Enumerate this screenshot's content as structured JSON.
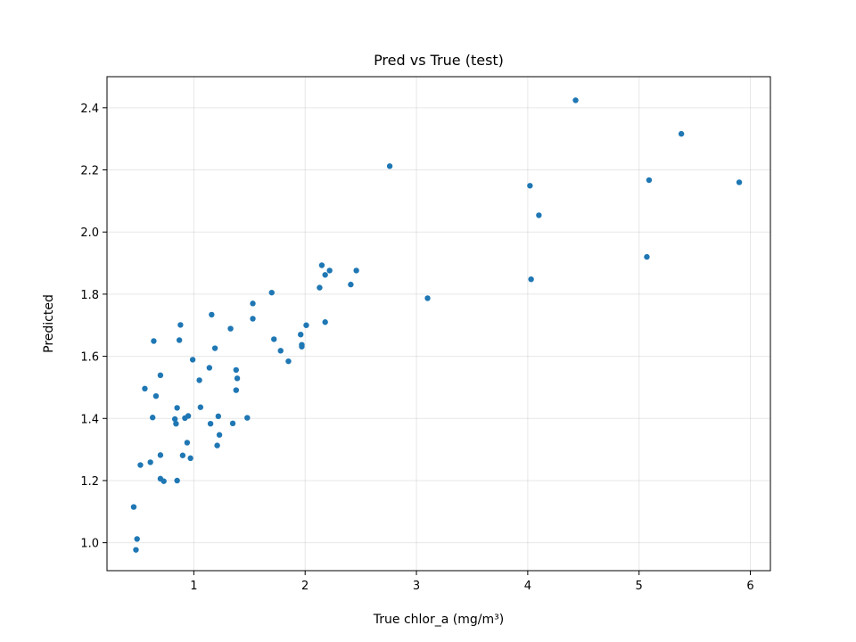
{
  "chart_data": {
    "type": "scatter",
    "title": "Pred vs True (test)",
    "xlabel": "True chlor_a (mg/m³)",
    "ylabel": "Predicted",
    "xlim": [
      0.22,
      6.18
    ],
    "ylim": [
      0.91,
      2.5
    ],
    "xticks": [
      1,
      2,
      3,
      4,
      5,
      6
    ],
    "yticks": [
      1.0,
      1.2,
      1.4,
      1.6,
      1.8,
      2.0,
      2.2,
      2.4
    ],
    "xtick_labels": [
      "1",
      "2",
      "3",
      "4",
      "5",
      "6"
    ],
    "ytick_labels": [
      "1.0",
      "1.2",
      "1.4",
      "1.6",
      "1.8",
      "2.0",
      "2.2",
      "2.4"
    ],
    "grid": true,
    "marker_color": "#1f77b4",
    "points": [
      {
        "x": 0.46,
        "y": 1.115
      },
      {
        "x": 0.49,
        "y": 1.012
      },
      {
        "x": 0.48,
        "y": 0.977
      },
      {
        "x": 0.52,
        "y": 1.25
      },
      {
        "x": 0.56,
        "y": 1.496
      },
      {
        "x": 0.61,
        "y": 1.259
      },
      {
        "x": 0.63,
        "y": 1.403
      },
      {
        "x": 0.64,
        "y": 1.649
      },
      {
        "x": 0.66,
        "y": 1.472
      },
      {
        "x": 0.7,
        "y": 1.539
      },
      {
        "x": 0.7,
        "y": 1.282
      },
      {
        "x": 0.7,
        "y": 1.206
      },
      {
        "x": 0.73,
        "y": 1.198
      },
      {
        "x": 0.83,
        "y": 1.398
      },
      {
        "x": 0.84,
        "y": 1.383
      },
      {
        "x": 0.85,
        "y": 1.434
      },
      {
        "x": 0.85,
        "y": 1.2
      },
      {
        "x": 0.87,
        "y": 1.652
      },
      {
        "x": 0.88,
        "y": 1.701
      },
      {
        "x": 0.9,
        "y": 1.281
      },
      {
        "x": 0.92,
        "y": 1.401
      },
      {
        "x": 0.94,
        "y": 1.322
      },
      {
        "x": 0.95,
        "y": 1.408
      },
      {
        "x": 0.97,
        "y": 1.272
      },
      {
        "x": 0.99,
        "y": 1.589
      },
      {
        "x": 1.05,
        "y": 1.523
      },
      {
        "x": 1.06,
        "y": 1.436
      },
      {
        "x": 1.14,
        "y": 1.563
      },
      {
        "x": 1.15,
        "y": 1.383
      },
      {
        "x": 1.16,
        "y": 1.734
      },
      {
        "x": 1.19,
        "y": 1.626
      },
      {
        "x": 1.21,
        "y": 1.313
      },
      {
        "x": 1.22,
        "y": 1.407
      },
      {
        "x": 1.23,
        "y": 1.347
      },
      {
        "x": 1.33,
        "y": 1.689
      },
      {
        "x": 1.35,
        "y": 1.384
      },
      {
        "x": 1.38,
        "y": 1.556
      },
      {
        "x": 1.39,
        "y": 1.529
      },
      {
        "x": 1.38,
        "y": 1.491
      },
      {
        "x": 1.48,
        "y": 1.402
      },
      {
        "x": 1.53,
        "y": 1.77
      },
      {
        "x": 1.53,
        "y": 1.721
      },
      {
        "x": 1.7,
        "y": 1.805
      },
      {
        "x": 1.72,
        "y": 1.655
      },
      {
        "x": 1.78,
        "y": 1.618
      },
      {
        "x": 1.85,
        "y": 1.584
      },
      {
        "x": 1.96,
        "y": 1.67
      },
      {
        "x": 1.97,
        "y": 1.637
      },
      {
        "x": 1.97,
        "y": 1.631
      },
      {
        "x": 2.01,
        "y": 1.7
      },
      {
        "x": 2.13,
        "y": 1.821
      },
      {
        "x": 2.15,
        "y": 1.893
      },
      {
        "x": 2.18,
        "y": 1.862
      },
      {
        "x": 2.18,
        "y": 1.71
      },
      {
        "x": 2.22,
        "y": 1.876
      },
      {
        "x": 2.41,
        "y": 1.831
      },
      {
        "x": 2.46,
        "y": 1.876
      },
      {
        "x": 2.76,
        "y": 2.212
      },
      {
        "x": 3.1,
        "y": 1.787
      },
      {
        "x": 4.02,
        "y": 2.149
      },
      {
        "x": 4.03,
        "y": 1.848
      },
      {
        "x": 4.1,
        "y": 2.054
      },
      {
        "x": 4.43,
        "y": 2.424
      },
      {
        "x": 5.07,
        "y": 1.92
      },
      {
        "x": 5.09,
        "y": 2.167
      },
      {
        "x": 5.38,
        "y": 2.316
      },
      {
        "x": 5.9,
        "y": 2.16
      }
    ]
  }
}
